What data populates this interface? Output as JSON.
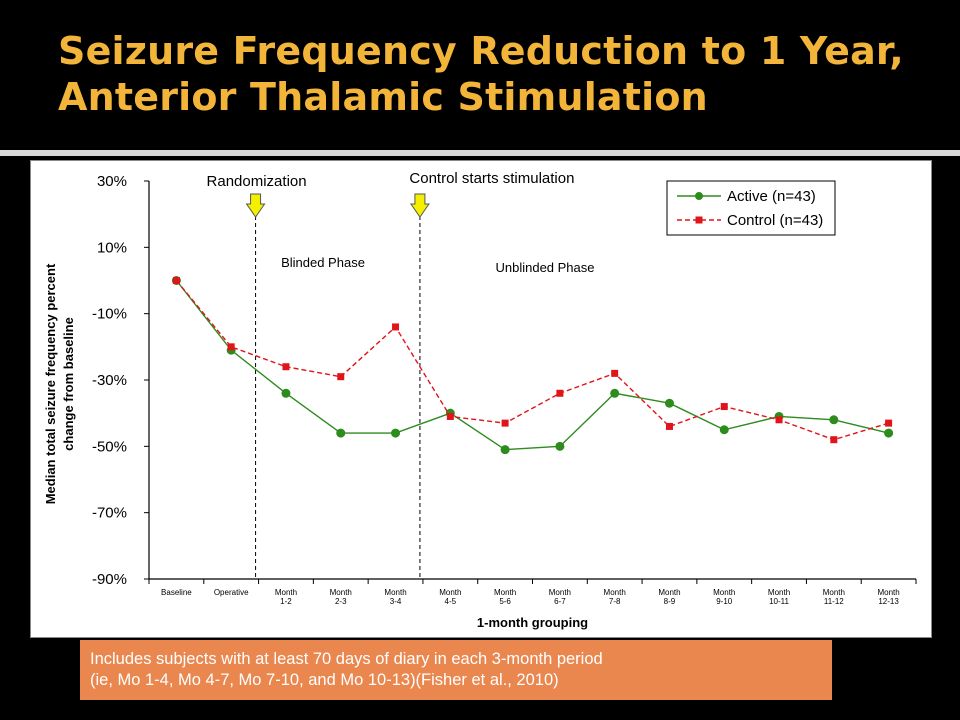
{
  "slide": {
    "title_line1": "Seizure Frequency Reduction to 1 Year,",
    "title_line2": "Anterior Thalamic Stimulation"
  },
  "note": {
    "line1": "Includes subjects with at least 70 days of diary in each 3-month period",
    "line2": "(ie, Mo 1-4, Mo 4-7, Mo 7-10, and Mo 10-13)(Fisher et al., 2010)"
  },
  "colors": {
    "title": "#f2b53a",
    "note_bg": "#e9874f",
    "active": "#2e8b1e",
    "control": "#e0141a",
    "arrow": "#f5f000"
  },
  "chart_data": {
    "type": "line",
    "title": "",
    "xlabel": "1-month grouping",
    "ylabel": "Median total seizure frequency percent change from baseline",
    "ylabel_lines": [
      "Median total seizure frequency percent",
      "change from baseline"
    ],
    "ylim": [
      -90,
      30
    ],
    "yticks": [
      {
        "value": 30,
        "label": "30%"
      },
      {
        "value": 10,
        "label": "10%"
      },
      {
        "value": -10,
        "label": "-10%"
      },
      {
        "value": -30,
        "label": "-30%"
      },
      {
        "value": -50,
        "label": "-50%"
      },
      {
        "value": -70,
        "label": "-70%"
      },
      {
        "value": -90,
        "label": "-90%"
      }
    ],
    "categories": [
      [
        "Baseline"
      ],
      [
        "Operative"
      ],
      [
        "Month",
        "1-2"
      ],
      [
        "Month",
        "2-3"
      ],
      [
        "Month",
        "3-4"
      ],
      [
        "Month",
        "4-5"
      ],
      [
        "Month",
        "5-6"
      ],
      [
        "Month",
        "6-7"
      ],
      [
        "Month",
        "7-8"
      ],
      [
        "Month",
        "8-9"
      ],
      [
        "Month",
        "9-10"
      ],
      [
        "Month",
        "10-11"
      ],
      [
        "Month",
        "11-12"
      ],
      [
        "Month",
        "12-13"
      ]
    ],
    "series": [
      {
        "name": "Active (n=43)",
        "color": "#2e8b1e",
        "dash": false,
        "marker": "circle",
        "values": [
          0,
          -21,
          -34,
          -46,
          -46,
          -40,
          -51,
          -50,
          -34,
          -37,
          -45,
          -41,
          -42,
          -46
        ]
      },
      {
        "name": "Control (n=43)",
        "color": "#e0141a",
        "dash": true,
        "marker": "square",
        "values": [
          0,
          -20,
          -26,
          -29,
          -14,
          -41,
          -43,
          -34,
          -28,
          -44,
          -38,
          -42,
          -48,
          -43
        ]
      }
    ],
    "vlines": [
      {
        "after_index": 1,
        "label": "Randomization",
        "phase": "Blinded Phase"
      },
      {
        "after_index": 4,
        "label": "Control starts stimulation",
        "phase": "Unblinded Phase"
      }
    ],
    "legend": "top-right",
    "grid": false
  }
}
